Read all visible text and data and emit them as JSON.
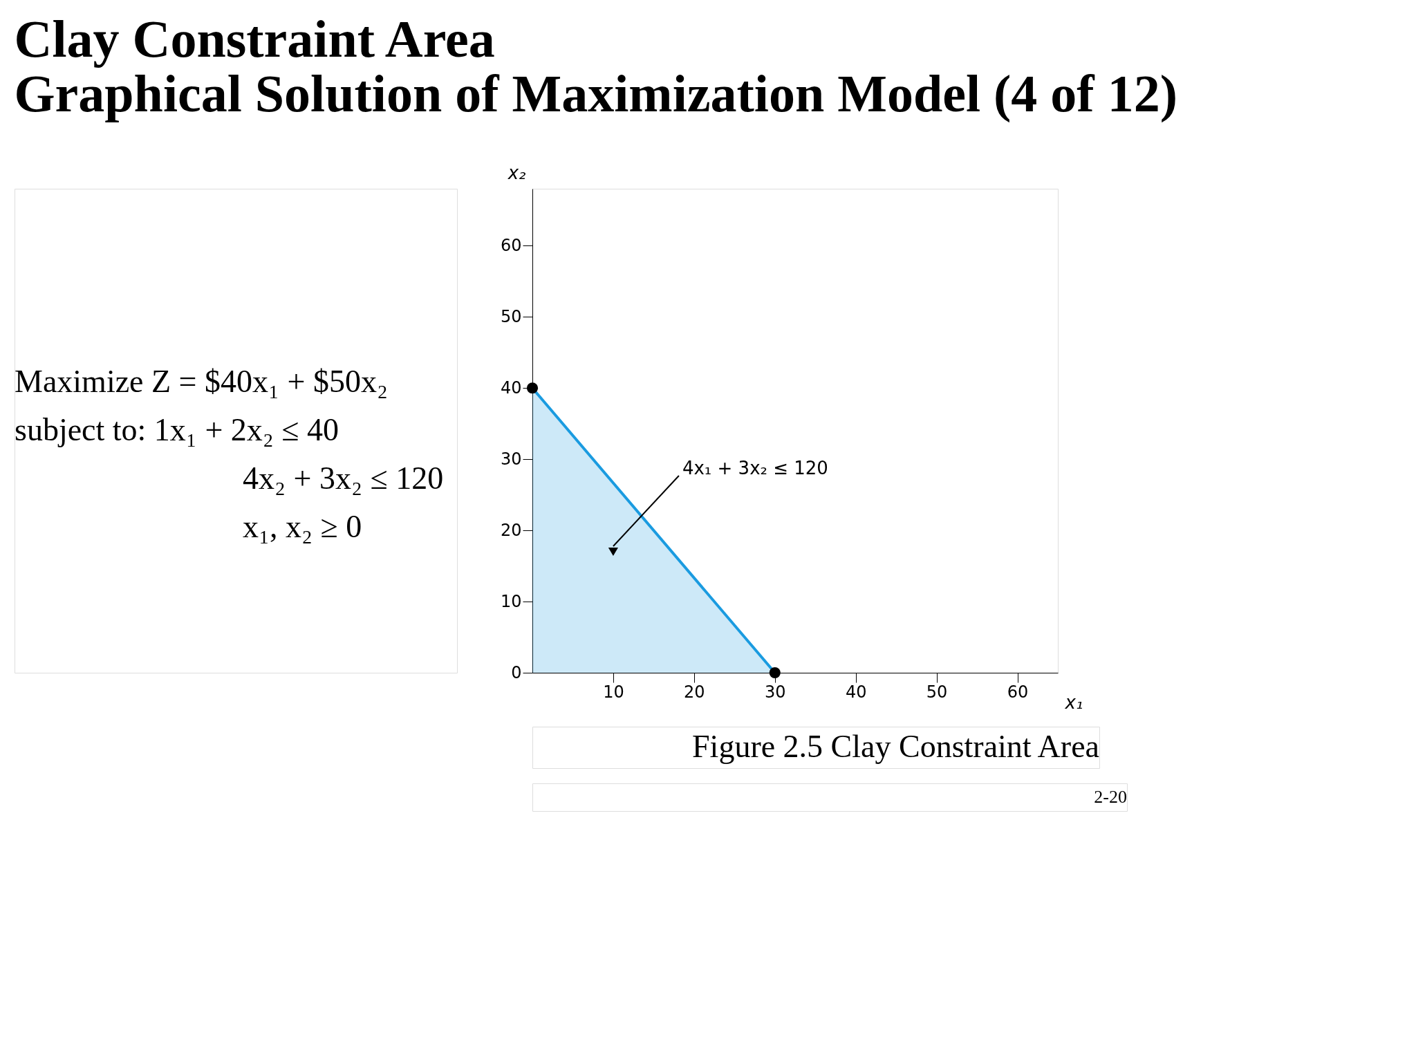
{
  "chart_data": {
    "type": "area",
    "title": "Clay Constraint Area",
    "subtitle": "Graphical Solution of Maximization Model (4 of 12)",
    "xlabel": "x₁",
    "ylabel": "x₂",
    "series": [
      {
        "color": "#1a9be0",
        "x": [
          0,
          30
        ],
        "values": [
          40,
          0
        ]
      }
    ],
    "xlim": [
      0,
      65
    ],
    "xticks": [
      10,
      20,
      30,
      40,
      50,
      60
    ],
    "ylim": [
      0,
      68
    ],
    "yticks": [
      0,
      10,
      20,
      30,
      40,
      50,
      60
    ],
    "grid": false,
    "marker": "circle",
    "annotations": [
      {
        "text": "4x₁ + 3x₂ ≤ 120",
        "x": 10,
        "y": 17
      },
      "Maximize Z = $40x₁ + $50x₂",
      "subject to:          1x₁ + 2x₂ ≤ 40",
      "4x₂ + 3x₂ ≤ 120",
      "x₁, x₂ ≥ 0",
      "Figure 2.5  Clay Constraint Area",
      "2-20"
    ]
  }
}
